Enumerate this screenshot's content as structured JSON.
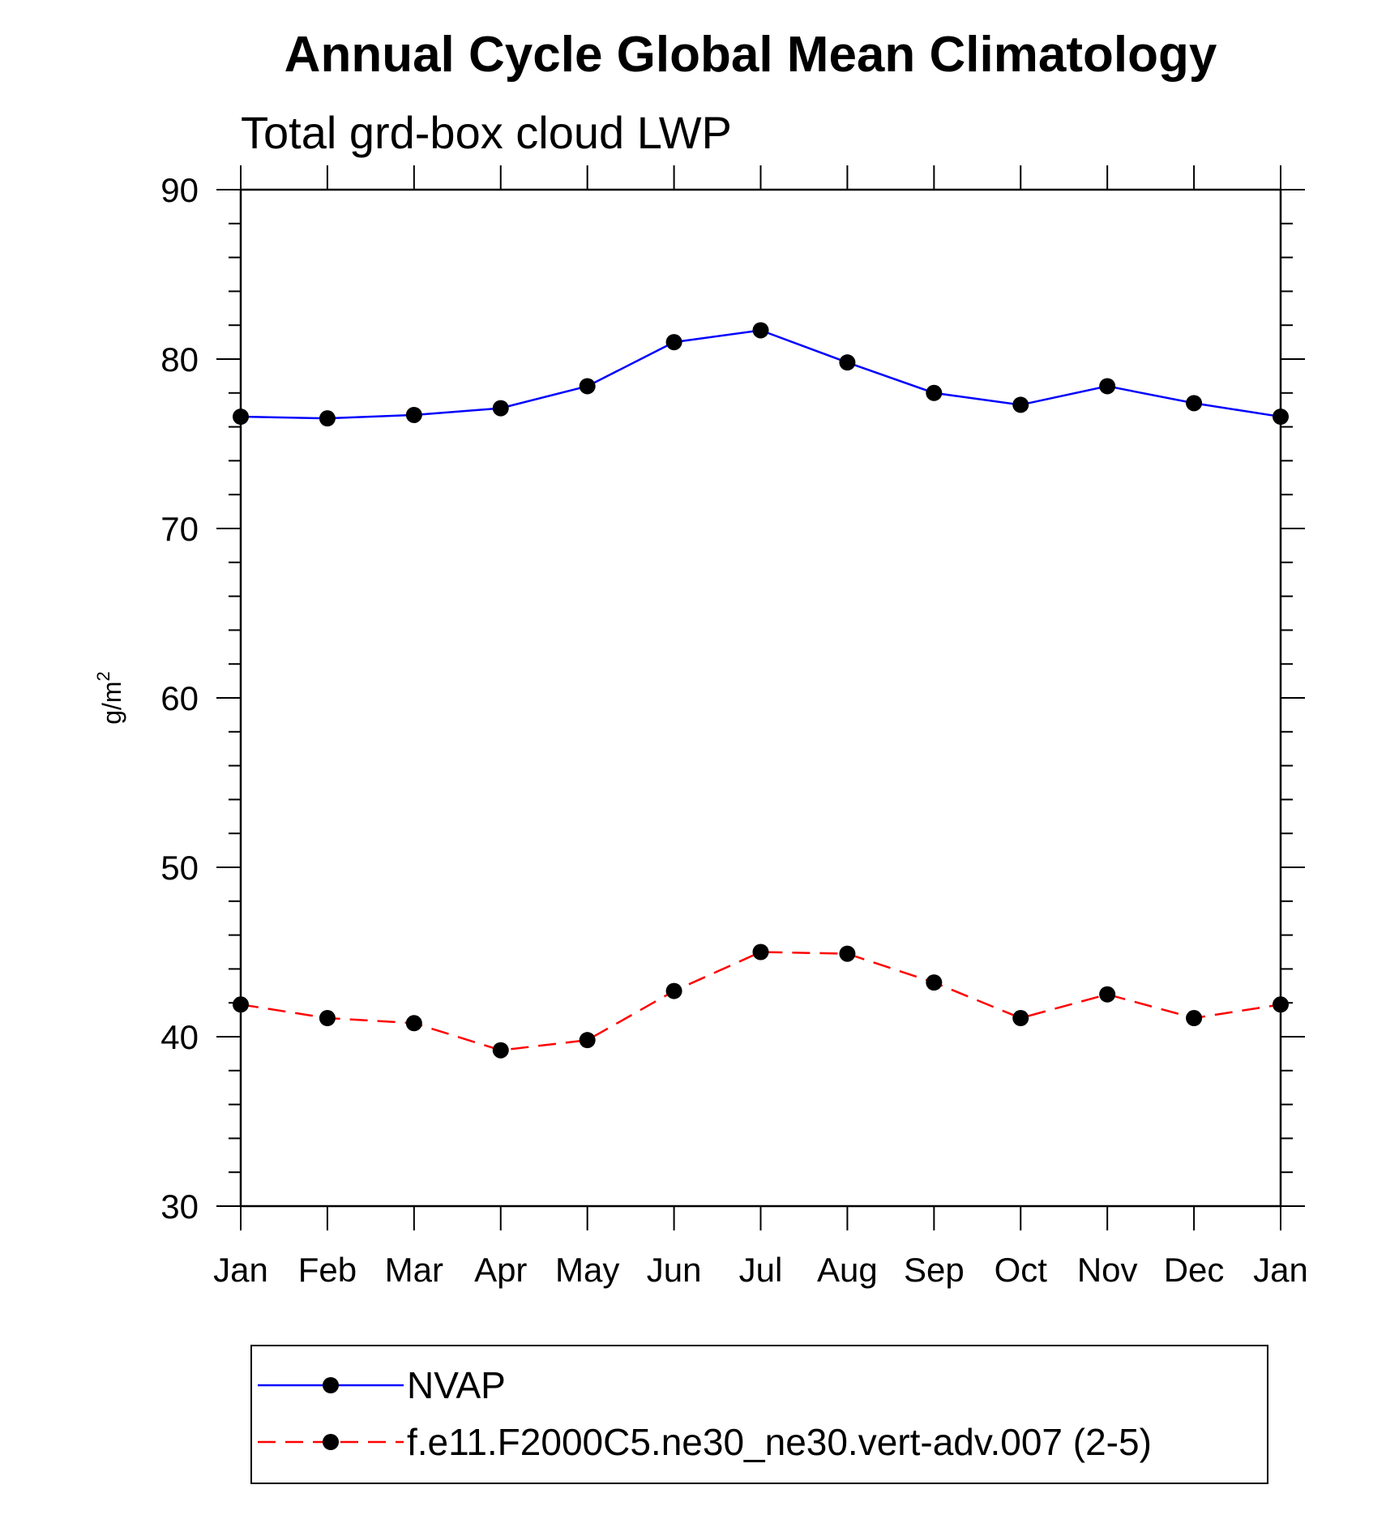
{
  "chart_data": {
    "type": "line",
    "title": "Annual Cycle Global Mean Climatology",
    "subtitle": "Total grd-box cloud LWP",
    "ylabel": "g/m",
    "ylabel_superscript": "2",
    "ylim": [
      30,
      90
    ],
    "yticks": [
      "30",
      "40",
      "50",
      "60",
      "70",
      "80",
      "90"
    ],
    "categories": [
      "Jan",
      "Feb",
      "Mar",
      "Apr",
      "May",
      "Jun",
      "Jul",
      "Aug",
      "Sep",
      "Oct",
      "Nov",
      "Dec",
      "Jan"
    ],
    "grid": false,
    "legend_position": "bottom",
    "series": [
      {
        "name": "NVAP",
        "color": "#0000ff",
        "dash": "solid",
        "marker": "filled-circle",
        "values": [
          76.6,
          76.5,
          76.7,
          77.1,
          78.4,
          81.0,
          81.7,
          79.8,
          78.0,
          77.3,
          78.4,
          77.4,
          76.6
        ]
      },
      {
        "name": "f.e11.F2000C5.ne30_ne30.vert-adv.007 (2-5)",
        "color": "#ff0000",
        "dash": "dashed",
        "marker": "filled-circle",
        "values": [
          41.9,
          41.1,
          40.8,
          39.2,
          39.8,
          42.7,
          45.0,
          44.9,
          43.2,
          41.1,
          42.5,
          41.1,
          41.9
        ]
      }
    ]
  }
}
